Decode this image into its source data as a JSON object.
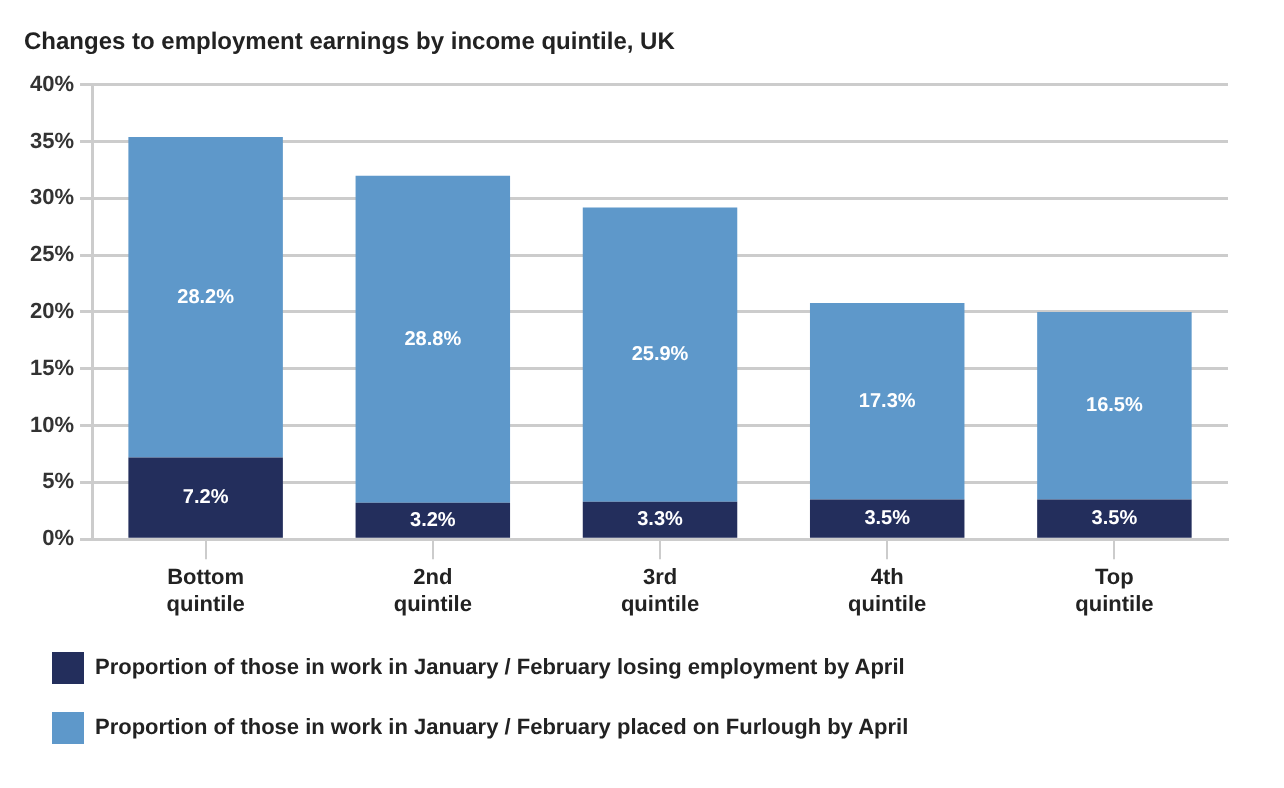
{
  "chart_data": {
    "type": "bar",
    "title": "Changes to employment earnings by income quintile, UK",
    "categories": [
      "Bottom quintile",
      "2nd quintile",
      "3rd quintile",
      "4th quintile",
      "Top quintile"
    ],
    "stacked": true,
    "series": [
      {
        "name": "Proportion of those in work in January / February losing employment by April",
        "color": "#232e5c",
        "values": [
          7.2,
          3.2,
          3.3,
          3.5,
          3.5
        ],
        "value_labels": [
          "7.2%",
          "3.2%",
          "3.3%",
          "3.5%",
          "3.5%"
        ]
      },
      {
        "name": "Proportion of those in work in January / February placed on Furlough by April",
        "color": "#5e98ca",
        "values": [
          28.2,
          28.8,
          25.9,
          17.3,
          16.5
        ],
        "value_labels": [
          "28.2%",
          "28.8%",
          "25.9%",
          "17.3%",
          "16.5%"
        ]
      }
    ],
    "ylim": [
      0,
      40
    ],
    "yticks": [
      {
        "value": 0,
        "label": "0%"
      },
      {
        "value": 5,
        "label": "5%"
      },
      {
        "value": 10,
        "label": "10%"
      },
      {
        "value": 15,
        "label": "15%"
      },
      {
        "value": 20,
        "label": "20%"
      },
      {
        "value": 25,
        "label": "25%"
      },
      {
        "value": 30,
        "label": "30%"
      },
      {
        "value": 35,
        "label": "35%"
      },
      {
        "value": 40,
        "label": "40%"
      }
    ],
    "grid": "y",
    "legend": "bottom"
  }
}
